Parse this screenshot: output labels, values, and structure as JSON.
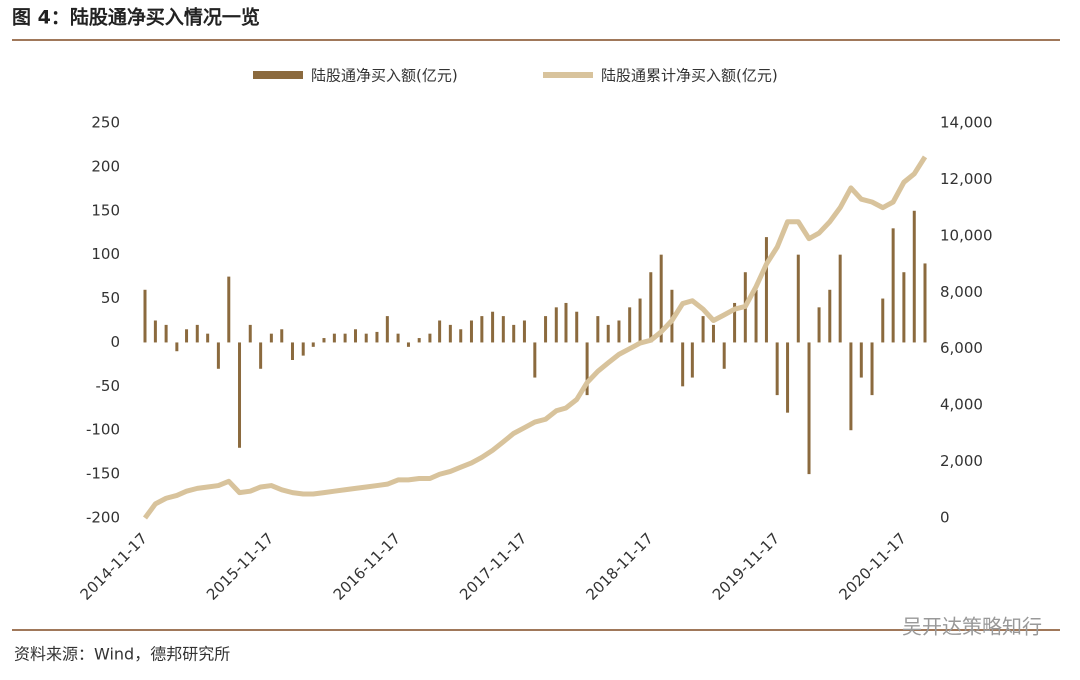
{
  "header": {
    "title": "图 4：陆股通净买入情况一览"
  },
  "chart_data": {
    "type": "bar-line",
    "x": [
      "2014-11-17",
      "2014-12-17",
      "2015-01-17",
      "2015-02-17",
      "2015-03-17",
      "2015-04-17",
      "2015-05-17",
      "2015-06-17",
      "2015-07-17",
      "2015-08-17",
      "2015-09-17",
      "2015-10-17",
      "2015-11-17",
      "2015-12-17",
      "2016-01-17",
      "2016-02-17",
      "2016-03-17",
      "2016-04-17",
      "2016-05-17",
      "2016-06-17",
      "2016-07-17",
      "2016-08-17",
      "2016-09-17",
      "2016-10-17",
      "2016-11-17",
      "2016-12-17",
      "2017-01-17",
      "2017-02-17",
      "2017-03-17",
      "2017-04-17",
      "2017-05-17",
      "2017-06-17",
      "2017-07-17",
      "2017-08-17",
      "2017-09-17",
      "2017-10-17",
      "2017-11-17",
      "2017-12-17",
      "2018-01-17",
      "2018-02-17",
      "2018-03-17",
      "2018-04-17",
      "2018-05-17",
      "2018-06-17",
      "2018-07-17",
      "2018-08-17",
      "2018-09-17",
      "2018-10-17",
      "2018-11-17",
      "2018-12-17",
      "2019-01-17",
      "2019-02-17",
      "2019-03-17",
      "2019-04-17",
      "2019-05-17",
      "2019-06-17",
      "2019-07-17",
      "2019-08-17",
      "2019-09-17",
      "2019-10-17",
      "2019-11-17",
      "2019-12-17",
      "2020-01-17",
      "2020-02-17",
      "2020-03-17",
      "2020-04-17",
      "2020-05-17",
      "2020-06-17",
      "2020-07-17",
      "2020-08-17",
      "2020-09-17",
      "2020-10-17",
      "2020-11-17",
      "2020-12-17",
      "2021-01-17"
    ],
    "xlim": [
      "2014-11-17",
      "2021-01-17"
    ],
    "xticks": [
      "2014-11-17",
      "2015-11-17",
      "2016-11-17",
      "2017-11-17",
      "2018-11-17",
      "2019-11-17",
      "2020-11-17"
    ],
    "series": [
      {
        "name": "陆股通净买入额(亿元)",
        "type": "bar",
        "color": "#8b6a3e",
        "values": [
          60,
          25,
          20,
          -10,
          15,
          20,
          10,
          -30,
          75,
          -120,
          20,
          -30,
          10,
          15,
          -20,
          -15,
          -5,
          5,
          10,
          10,
          15,
          10,
          12,
          30,
          10,
          -5,
          5,
          10,
          25,
          20,
          15,
          25,
          30,
          35,
          30,
          20,
          25,
          -40,
          30,
          40,
          45,
          35,
          -60,
          30,
          20,
          25,
          40,
          50,
          80,
          100,
          60,
          -50,
          -40,
          30,
          20,
          -30,
          45,
          80,
          60,
          120,
          -60,
          -80,
          100,
          -150,
          40,
          60,
          100,
          -100,
          -40,
          -60,
          50,
          130,
          80,
          150,
          90
        ]
      },
      {
        "name": "陆股通累计净买入额(亿元)",
        "type": "line",
        "axis": "y2",
        "color": "#d8c39c",
        "values": [
          0,
          500,
          700,
          800,
          950,
          1050,
          1100,
          1150,
          1300,
          900,
          950,
          1100,
          1150,
          1000,
          900,
          850,
          850,
          900,
          950,
          1000,
          1050,
          1100,
          1150,
          1200,
          1350,
          1350,
          1400,
          1400,
          1550,
          1650,
          1800,
          1950,
          2150,
          2400,
          2700,
          3000,
          3200,
          3400,
          3500,
          3800,
          3900,
          4200,
          4800,
          5200,
          5500,
          5800,
          6000,
          6200,
          6300,
          6600,
          7000,
          7600,
          7700,
          7400,
          7000,
          7200,
          7400,
          7500,
          8200,
          9000,
          9600,
          10500,
          10500,
          9900,
          10100,
          10500,
          11000,
          11700,
          11300,
          11200,
          11000,
          11200,
          11900,
          12200,
          12800
        ]
      }
    ],
    "ylim": [
      -200,
      250
    ],
    "yticks": [
      -200,
      -150,
      -100,
      -50,
      0,
      50,
      100,
      150,
      200,
      250
    ],
    "y2lim": [
      0,
      14000
    ],
    "y2ticks": [
      0,
      {
        "value": 2000,
        "label": "2,000"
      },
      {
        "value": 4000,
        "label": "4,000"
      },
      {
        "value": 6000,
        "label": "6,000"
      },
      {
        "value": 8000,
        "label": "8,000"
      },
      {
        "value": 10000,
        "label": "10,000"
      },
      {
        "value": 12000,
        "label": "12,000"
      },
      {
        "value": 14000,
        "label": "14,000"
      }
    ]
  },
  "footer": {
    "source": "资料来源：Wind，德邦研究所",
    "watermark": "吴开达策略知行"
  }
}
